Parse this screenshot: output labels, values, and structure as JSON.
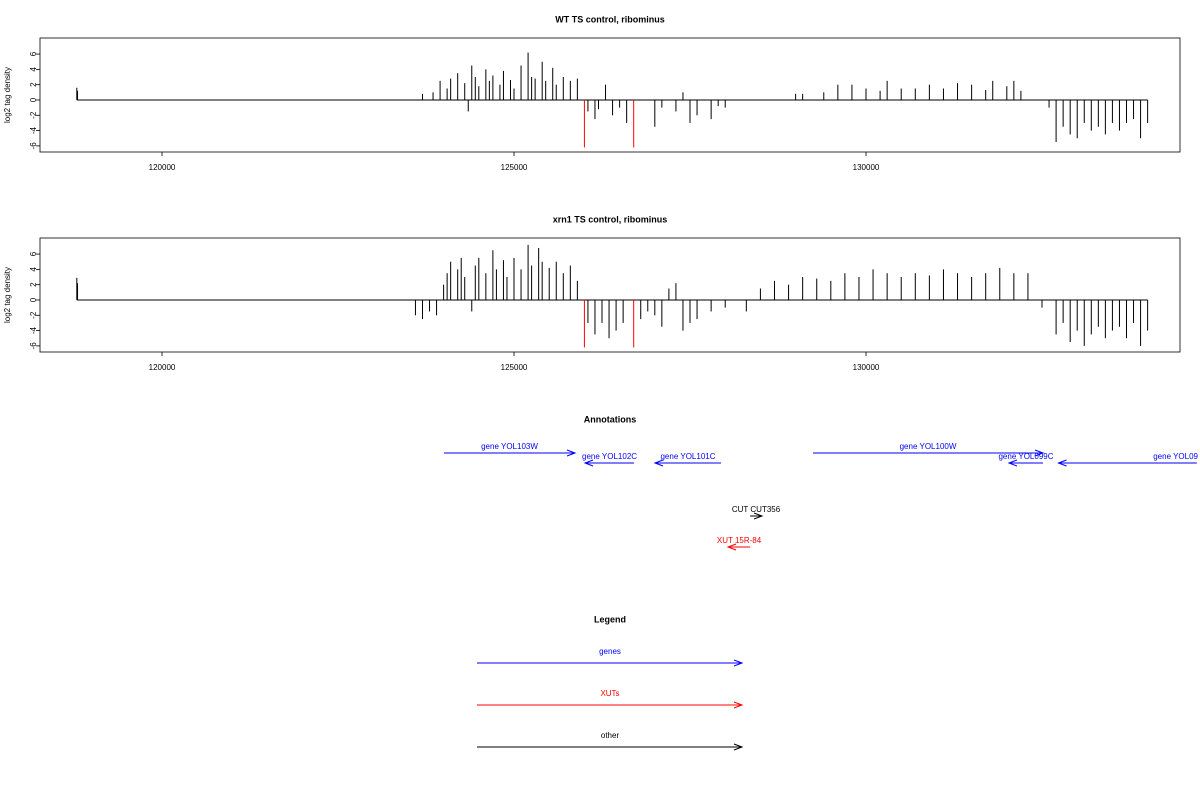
{
  "chart_data": [
    {
      "type": "spike",
      "title": "WT TS control, ribominus",
      "ylabel": "log2 tag density",
      "xlim": [
        118267,
        134460
      ],
      "xticks": [
        120000,
        125000,
        130000
      ],
      "ylim": [
        -6.8,
        8.1
      ],
      "yticks": [
        -6,
        -4,
        -2,
        0,
        2,
        4,
        6
      ],
      "series": [
        {
          "color": "#000000",
          "x": [
            118790,
            118800,
            123700,
            123850,
            123950,
            124050,
            124100,
            124200,
            124300,
            124350,
            124400,
            124450,
            124500,
            124600,
            124650,
            124700,
            124800,
            124850,
            124950,
            125000,
            125100,
            125200,
            125250,
            125300,
            125400,
            125450,
            125550,
            125600,
            125700,
            125800,
            125900,
            126050,
            126150,
            126200,
            126300,
            126400,
            126500,
            126600,
            127000,
            127100,
            127300,
            127400,
            127500,
            127600,
            127800,
            127900,
            128000,
            129000,
            129100,
            129400,
            129600,
            129800,
            130000,
            130200,
            130300,
            130500,
            130700,
            130900,
            131100,
            131300,
            131500,
            131700,
            131800,
            132000,
            132100,
            132200,
            132600,
            132700,
            132800,
            132900,
            133000,
            133100,
            133200,
            133300,
            133400,
            133500,
            133600,
            133700,
            133800,
            133900,
            134000
          ],
          "values": [
            1.6,
            1.2,
            0.8,
            1,
            2.5,
            1.5,
            2.8,
            3.5,
            2.2,
            -1.5,
            4.5,
            3,
            1.8,
            4,
            2.5,
            3.2,
            2,
            3.8,
            2.6,
            1.5,
            4.5,
            6.2,
            3,
            2.8,
            5,
            2.5,
            4.2,
            2,
            3,
            2.5,
            2.8,
            -1.5,
            -2.5,
            -1.2,
            2,
            -2,
            -1,
            -3,
            -3.5,
            -1,
            -1.5,
            1,
            -3,
            -2,
            -2.5,
            -0.8,
            -1,
            0.8,
            0.8,
            1,
            2,
            2,
            1.5,
            1.2,
            2.5,
            1.5,
            1.5,
            2,
            1.5,
            2.2,
            2,
            1.3,
            2.5,
            1.8,
            2.5,
            1.2,
            -1,
            -5.5,
            -3.5,
            -4.5,
            -5,
            -3,
            -4,
            -3.5,
            -4.5,
            -3,
            -4,
            -3,
            -2.5,
            -5,
            -3
          ]
        },
        {
          "color": "#ff0000",
          "x": [
            126000,
            126700
          ],
          "values": [
            -6.2,
            -6.2
          ]
        }
      ]
    },
    {
      "type": "spike",
      "title": "xrn1 TS control, ribominus",
      "ylabel": "log2 tag density",
      "xlim": [
        118267,
        134460
      ],
      "xticks": [
        120000,
        125000,
        130000
      ],
      "ylim": [
        -6.8,
        8.1
      ],
      "yticks": [
        -6,
        -4,
        -2,
        0,
        2,
        4,
        6
      ],
      "series": [
        {
          "color": "#000000",
          "x": [
            118790,
            118800,
            123600,
            123700,
            123800,
            123900,
            124000,
            124050,
            124100,
            124200,
            124250,
            124300,
            124400,
            124450,
            124500,
            124600,
            124700,
            124750,
            124850,
            124900,
            125000,
            125100,
            125200,
            125250,
            125350,
            125400,
            125500,
            125600,
            125700,
            125800,
            125900,
            126050,
            126150,
            126250,
            126350,
            126450,
            126550,
            126800,
            126900,
            127000,
            127100,
            127200,
            127300,
            127400,
            127500,
            127600,
            127800,
            128000,
            128300,
            128500,
            128700,
            128900,
            129100,
            129300,
            129500,
            129700,
            129900,
            130100,
            130300,
            130500,
            130700,
            130900,
            131100,
            131300,
            131500,
            131700,
            131900,
            132100,
            132300,
            132500,
            132700,
            132800,
            132900,
            133000,
            133100,
            133200,
            133300,
            133400,
            133500,
            133600,
            133700,
            133800,
            133900,
            134000
          ],
          "values": [
            2.9,
            2.2,
            -2,
            -2.5,
            -1.5,
            -2,
            2,
            3.5,
            5,
            4,
            5.5,
            3,
            -1.5,
            4.5,
            5.5,
            3.5,
            6.5,
            4,
            5.2,
            3,
            5.5,
            4,
            7.2,
            4.5,
            6.8,
            5,
            4.2,
            5,
            3.5,
            4.5,
            2.5,
            -3,
            -4.5,
            -3,
            -5,
            -4,
            -3,
            -2.5,
            -1.5,
            -2,
            -3.5,
            1.5,
            2.2,
            -4,
            -3,
            -2.5,
            -1.5,
            -1,
            -1.5,
            1.5,
            2.5,
            2,
            3,
            2.8,
            2.5,
            3.5,
            3,
            4,
            3.5,
            3,
            3.5,
            3.2,
            4,
            3.5,
            3,
            3.5,
            4.2,
            3.5,
            3.5,
            -1,
            -4.5,
            -3,
            -5.5,
            -4,
            -6,
            -4.5,
            -3.5,
            -5,
            -4,
            -3.5,
            -5,
            -3,
            -6,
            -4
          ]
        },
        {
          "color": "#ff0000",
          "x": [
            126000,
            126700
          ],
          "values": [
            -6.2,
            -6.2
          ]
        }
      ]
    }
  ],
  "annotations": {
    "title": "Annotations",
    "features": [
      {
        "label": "gene YOL103W",
        "color": "#0000ff",
        "start": 124006,
        "end": 125866,
        "strand": "+"
      },
      {
        "label": "gene YOL102C",
        "color": "#0000ff",
        "start": 126009,
        "end": 126705,
        "strand": "-"
      },
      {
        "label": "gene YOL101C",
        "color": "#0000ff",
        "start": 127003,
        "end": 127940,
        "strand": "-"
      },
      {
        "label": "gene YOL100W",
        "color": "#0000ff",
        "start": 129247,
        "end": 132514,
        "strand": "+"
      },
      {
        "label": "gene YOL099C",
        "color": "#0000ff",
        "start": 132031,
        "end": 132514,
        "strand": "-"
      },
      {
        "label": "gene YOL09",
        "color": "#0000ff",
        "start": 132734,
        "end": 134700,
        "strand": "-"
      },
      {
        "label": "CUT CUT356",
        "color": "#000000",
        "start": 128353,
        "end": 128523,
        "strand": "+"
      },
      {
        "label": "XUT 15R-84",
        "color": "#ff0000",
        "start": 128040,
        "end": 128353,
        "strand": "-"
      }
    ]
  },
  "legend": {
    "title": "Legend",
    "items": [
      {
        "label": "genes",
        "color": "#0000ff"
      },
      {
        "label": "XUTs",
        "color": "#ff0000"
      },
      {
        "label": "other",
        "color": "#000000"
      }
    ]
  }
}
